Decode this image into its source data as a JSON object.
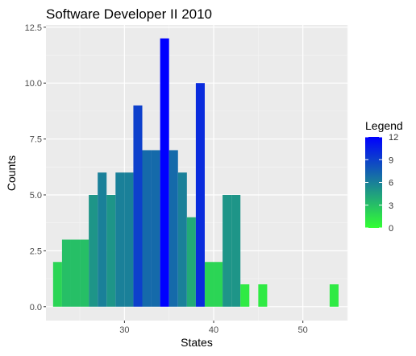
{
  "chart_data": {
    "type": "bar",
    "title": "Software Developer II 2010",
    "xlabel": "States",
    "ylabel": "Counts",
    "xlim": [
      21.2,
      55
    ],
    "ylim": [
      -0.62,
      12.6
    ],
    "x_ticks": [
      30,
      40,
      50
    ],
    "y_ticks": [
      0,
      2.5,
      5,
      7.5,
      10,
      12.5
    ],
    "y_tick_labels": [
      "0.0",
      "2.5",
      "5.0",
      "7.5",
      "10.0",
      "12.5"
    ],
    "bin_width": 1,
    "x": [
      22.5,
      23.5,
      24.5,
      25.5,
      26.5,
      27.5,
      28.5,
      29.5,
      30.5,
      31.5,
      32.5,
      33.5,
      34.5,
      35.5,
      36.5,
      37.5,
      38.5,
      39.5,
      40.5,
      41.5,
      42.5,
      43.5,
      45.5,
      53.5
    ],
    "values": [
      2,
      3,
      3,
      3,
      5,
      6,
      5,
      6,
      6,
      9,
      7,
      7,
      12,
      7,
      6,
      4,
      10,
      2,
      2,
      5,
      5,
      1,
      1,
      1
    ],
    "legend": {
      "title": "Legend",
      "position": "right",
      "ticks": [
        12,
        9,
        6,
        3,
        0
      ],
      "low_color": "#33ff33",
      "high_color": "#0000ff",
      "min": 0,
      "max": 12
    },
    "grid": true,
    "background_color": "#ebebeb"
  }
}
